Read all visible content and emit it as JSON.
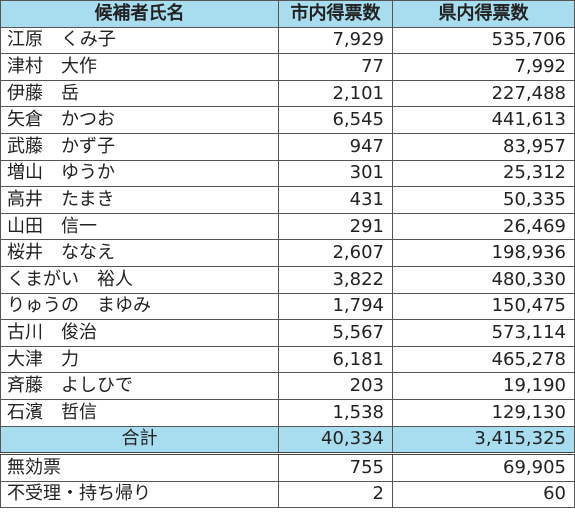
{
  "headers": {
    "name": "候補者氏名",
    "city": "市内得票数",
    "pref": "県内得票数"
  },
  "candidates": [
    {
      "name": "江原　くみ子",
      "city": "7,929",
      "pref": "535,706"
    },
    {
      "name": "津村　大作",
      "city": "77",
      "pref": "7,992"
    },
    {
      "name": "伊藤　岳",
      "city": "2,101",
      "pref": "227,488"
    },
    {
      "name": "矢倉　かつお",
      "city": "6,545",
      "pref": "441,613"
    },
    {
      "name": "武藤　かず子",
      "city": "947",
      "pref": "83,957"
    },
    {
      "name": "増山　ゆうか",
      "city": "301",
      "pref": "25,312"
    },
    {
      "name": "高井　たまき",
      "city": "431",
      "pref": "50,335"
    },
    {
      "name": "山田　信一",
      "city": "291",
      "pref": "26,469"
    },
    {
      "name": "桜井　ななえ",
      "city": "2,607",
      "pref": "198,936"
    },
    {
      "name": "くまがい　裕人",
      "city": "3,822",
      "pref": "480,330"
    },
    {
      "name": "りゅうの　まゆみ",
      "city": "1,794",
      "pref": "150,475"
    },
    {
      "name": "古川　俊治",
      "city": "5,567",
      "pref": "573,114"
    },
    {
      "name": "大津　力",
      "city": "6,181",
      "pref": "465,278"
    },
    {
      "name": "斉藤　よしひで",
      "city": "203",
      "pref": "19,190"
    },
    {
      "name": "石濱　哲信",
      "city": "1,538",
      "pref": "129,130"
    }
  ],
  "total": {
    "label": "合計",
    "city": "40,334",
    "pref": "3,415,325"
  },
  "extra": [
    {
      "label": "無効票",
      "city": "755",
      "pref": "69,905"
    },
    {
      "label": "不受理・持ち帰り",
      "city": "2",
      "pref": "60"
    }
  ],
  "colors": {
    "header_bg": "#a8dcef",
    "border": "#555555"
  }
}
